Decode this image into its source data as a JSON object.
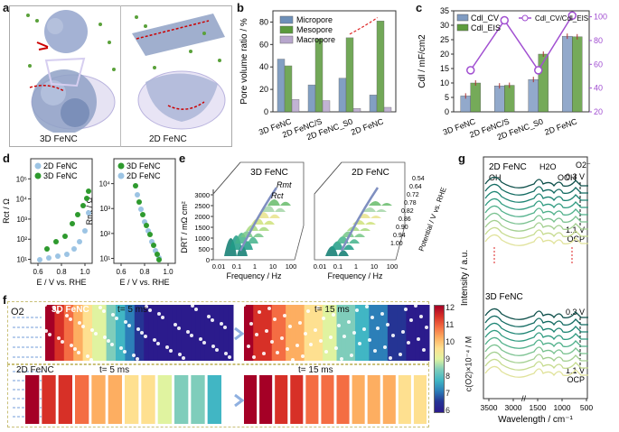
{
  "panels": {
    "a": {
      "letter": "a",
      "left_label": "3D FeNC",
      "right_label": "2D FeNC"
    },
    "b": {
      "letter": "b",
      "chart_data": {
        "type": "bar",
        "categories": [
          "3D FeNC",
          "2D FeNC/S",
          "2D FeNC_S0",
          "2D FeNC"
        ],
        "series": [
          {
            "name": "Micropore",
            "values": [
              47,
              24,
              30,
              15
            ],
            "color": "#6d8fb8"
          },
          {
            "name": "Mesopore",
            "values": [
              41,
              65,
              66,
              81
            ],
            "color": "#5a9a3c"
          },
          {
            "name": "Macropore",
            "values": [
              11,
              10,
              3,
              4
            ],
            "color": "#b7a6cc"
          }
        ],
        "ylabel": "Pore volume ratio / %",
        "ylim": [
          0,
          90
        ],
        "yticks": [
          0,
          20,
          40,
          60,
          80
        ]
      }
    },
    "c": {
      "letter": "c",
      "chart_data": {
        "type": "bar",
        "categories": [
          "3D FeNC",
          "2D FeNC/S",
          "2D FeNC_S0",
          "2D FeNC"
        ],
        "series": [
          {
            "name": "Cdl_CV",
            "values": [
              5.5,
              9,
              11.2,
              26.2
            ],
            "color": "#7f9bc2"
          },
          {
            "name": "Cdl_EIS",
            "values": [
              10,
              9.2,
              20,
              26
            ],
            "color": "#5e9c3d"
          },
          {
            "name": "Cdl_CV/Cdl_EIS",
            "values": [
              55,
              97,
              55,
              101
            ],
            "color": "#a14fd1",
            "axis": "right"
          }
        ],
        "ylabel": "Cdl / mF/cm2",
        "ylim": [
          0,
          35
        ],
        "yticks": [
          0,
          5,
          10,
          15,
          20,
          25,
          30,
          35
        ],
        "y2lim": [
          20,
          105
        ],
        "y2ticks": [
          20,
          40,
          60,
          80,
          100
        ]
      },
      "legend": {
        "cv": "Cdl_CV",
        "eis": "Cdl_EIS",
        "ratio": "Cdl_CV/Cdl_EIS"
      }
    },
    "d": {
      "letter": "d",
      "left": {
        "ylabel": "Rct / Ω",
        "xlabel": "E / V vs. RHE",
        "xticks": [
          "0.6",
          "0.8",
          "1.0"
        ],
        "yticks": [
          "10¹",
          "10²",
          "10³",
          "10⁴",
          "10⁵"
        ],
        "legend": [
          "2D FeNC",
          "3D FeNC"
        ]
      },
      "right": {
        "ylabel": "Rmt / Ω",
        "xlabel": "E / V vs. RHE",
        "xticks": [
          "0.6",
          "0.8",
          "1.0"
        ],
        "yticks": [
          "10¹",
          "10²",
          "10³",
          "10⁴"
        ],
        "legend": [
          "3D FeNC",
          "2D FeNC"
        ]
      }
    },
    "e": {
      "letter": "e",
      "left_title": "3D FeNC",
      "right_title": "2D FeNC",
      "rmt": "Rmt",
      "rct": "Rct",
      "ylabel": "DRT / mΩ cm²",
      "yticks": [
        "0",
        "500",
        "1000",
        "1500",
        "2000",
        "2500",
        "3000"
      ],
      "xlabel": "Frequency / Hz",
      "xticks": [
        "0.01",
        "0.1",
        "1",
        "10",
        "100"
      ],
      "zlabel": "Potential / V vs. RHE",
      "zticks": [
        "0.54",
        "0.64",
        "0.72",
        "0.78",
        "0.82",
        "0.86",
        "0.90",
        "0.94",
        "1.00"
      ]
    },
    "f": {
      "letter": "f",
      "o2": "O2",
      "top_label": "3D FeNC",
      "bottom_label": "2D FeNC",
      "t1": "t= 5 ms",
      "t2": "t= 15 ms",
      "colorbar_label": "c(O2)×10⁻⁴ / M",
      "colorbar_ticks": [
        "12",
        "11",
        "10",
        "9",
        "8",
        "7",
        "6"
      ]
    },
    "g": {
      "letter": "g",
      "top_label": "2D FeNC",
      "bottom_label": "3D FeNC",
      "peaks": [
        "OH",
        "H2O",
        "OOH",
        "O2⁻"
      ],
      "v_top": "0.3 V",
      "v_bottom": "1.1 V",
      "ocp": "OCP",
      "xlabel": "Wavelength / cm⁻¹",
      "ylabel": "Intensity / a.u.",
      "xticks": [
        "3500",
        "3000",
        "1500",
        "1000",
        "500"
      ]
    }
  }
}
